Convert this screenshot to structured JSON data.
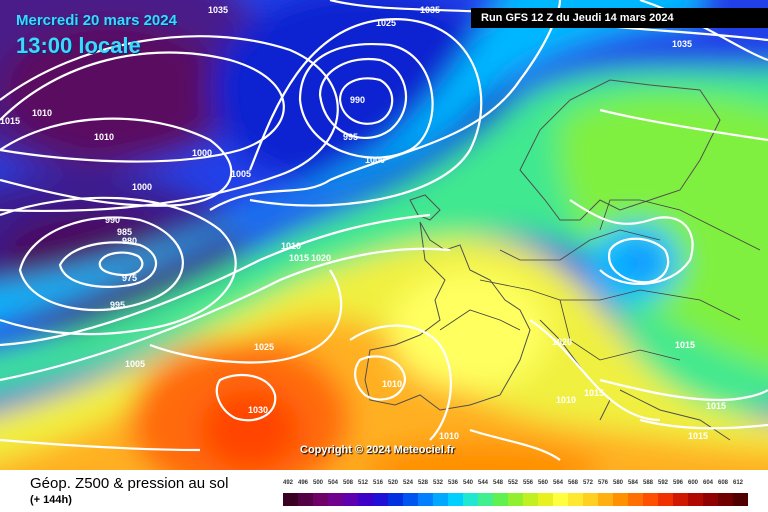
{
  "header": {
    "date": "Mercredi 20 mars 2024",
    "local_time": "13:00 locale",
    "run": "Run GFS 12 Z du Jeudi 14 mars 2024"
  },
  "copyright": "Copyright © 2024 Meteociel.fr",
  "footer": {
    "title": "Géop. Z500 & pression au sol",
    "subtitle": "(+ 144h)"
  },
  "isobar_labels": [
    "1035",
    "1025",
    "1035",
    "1035",
    "1015",
    "1010",
    "1010",
    "1000",
    "990",
    "995",
    "1000",
    "1005",
    "1000",
    "990",
    "985",
    "980",
    "975",
    "995",
    "1010",
    "1015",
    "1020",
    "1005",
    "1025",
    "1030",
    "1010",
    "1020",
    "1015",
    "1015",
    "1010",
    "1010",
    "1015",
    "1015"
  ],
  "scale": {
    "values": [
      "492",
      "496",
      "500",
      "504",
      "508",
      "512",
      "516",
      "520",
      "524",
      "528",
      "532",
      "536",
      "540",
      "544",
      "548",
      "552",
      "556",
      "560",
      "564",
      "568",
      "572",
      "576",
      "580",
      "584",
      "588",
      "592",
      "596",
      "600",
      "604",
      "608",
      "612"
    ],
    "colors": [
      "#3a0024",
      "#540045",
      "#6e0068",
      "#70008e",
      "#5e00b0",
      "#3d00c8",
      "#1f10d8",
      "#0030e0",
      "#0055f0",
      "#0080ff",
      "#00a8ff",
      "#00d0ff",
      "#20e8d0",
      "#40f090",
      "#60f050",
      "#90f030",
      "#c0f020",
      "#e8f020",
      "#ffff40",
      "#ffe830",
      "#ffd020",
      "#ffb010",
      "#ff9000",
      "#ff7000",
      "#ff5000",
      "#f03000",
      "#d01800",
      "#b00800",
      "#900000",
      "#700000",
      "#500000"
    ]
  }
}
